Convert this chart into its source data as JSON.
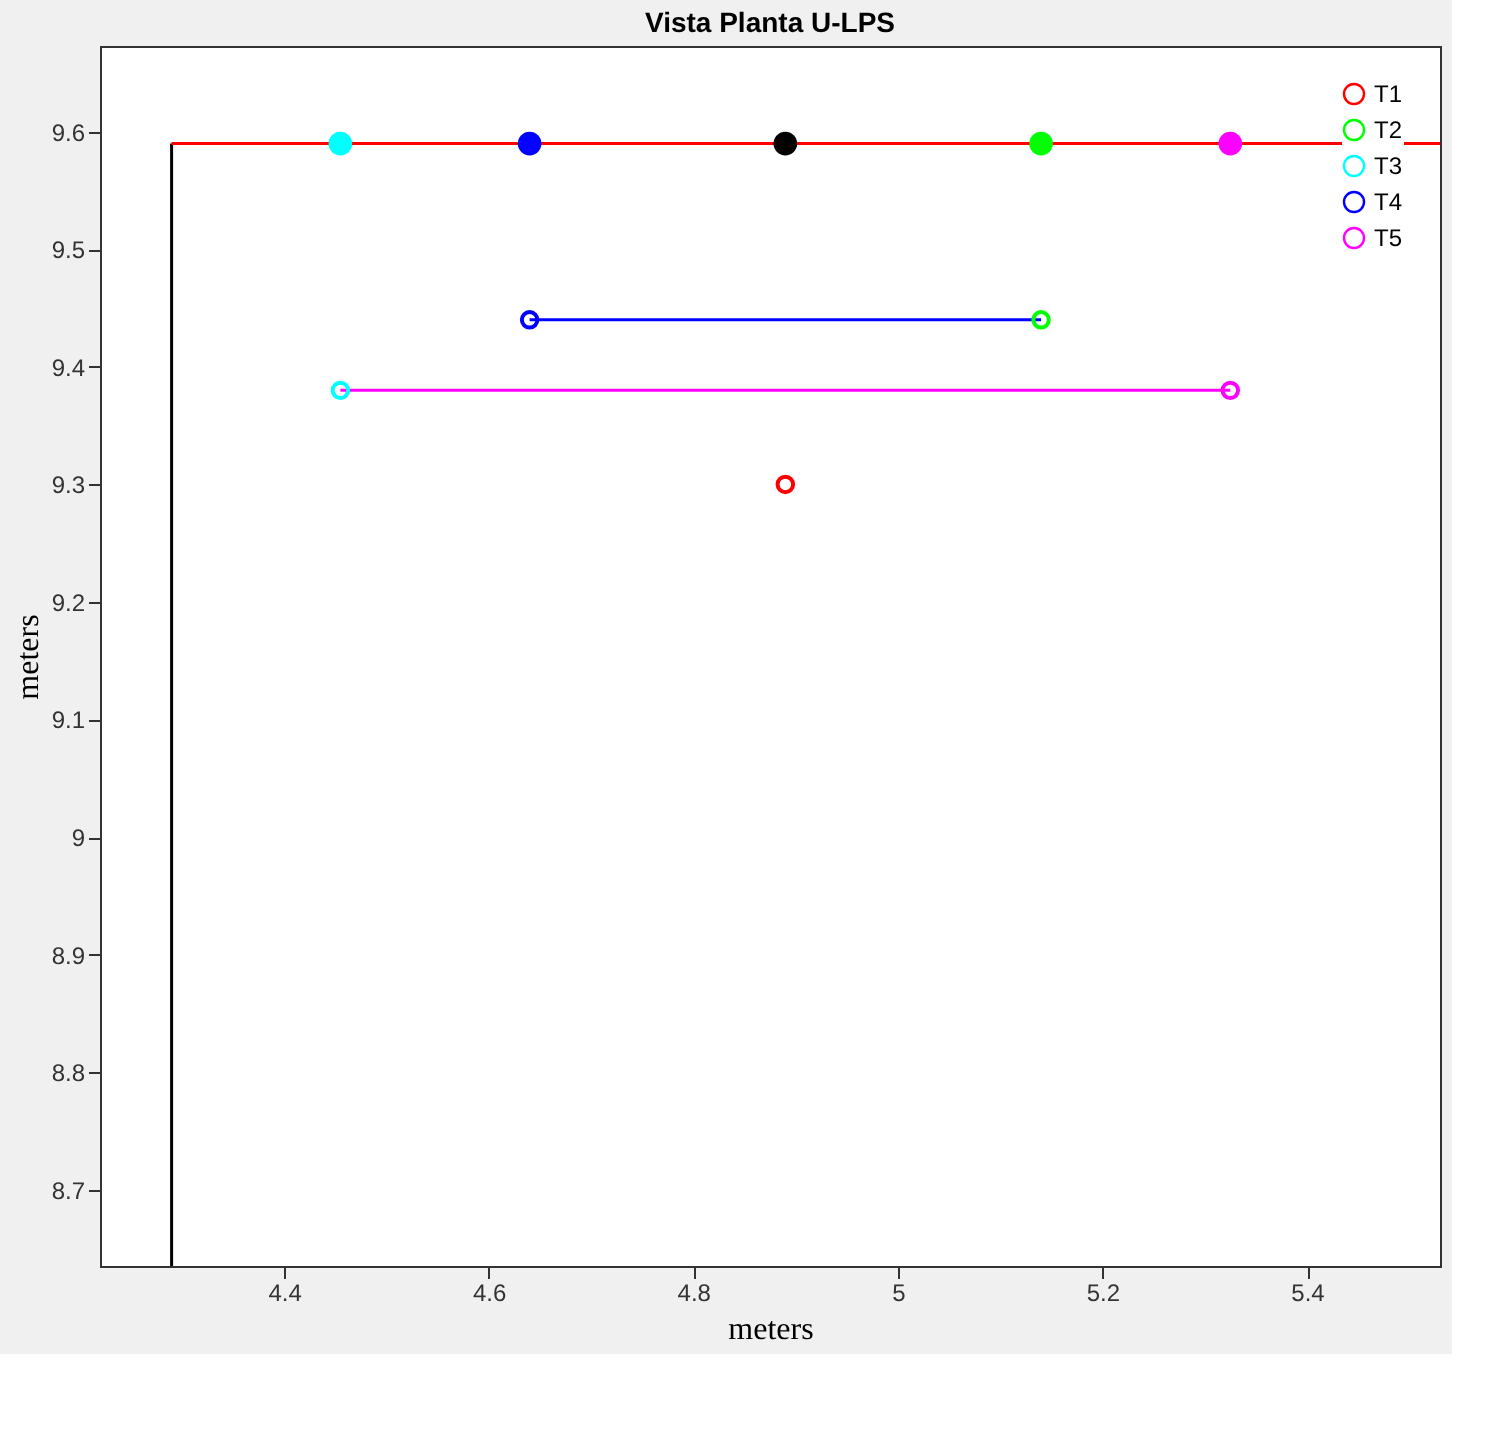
{
  "chart_data": {
    "type": "scatter",
    "title": "Vista Planta U-LPS",
    "xlabel": "meters",
    "ylabel": "meters",
    "xlim": [
      4.22,
      5.53
    ],
    "ylim": [
      8.635,
      9.673
    ],
    "xticks": [
      4.4,
      4.6,
      4.8,
      5,
      5.2,
      5.4
    ],
    "yticks": [
      8.7,
      8.8,
      8.9,
      9,
      9.1,
      9.2,
      9.3,
      9.4,
      9.5,
      9.6
    ],
    "grid": false,
    "legend": "top right",
    "marker": "circle",
    "series": [
      {
        "type": "line",
        "color": "#000000",
        "x": [
          4.29,
          4.29
        ],
        "values": [
          8.635,
          9.59
        ],
        "marker": "none"
      },
      {
        "type": "line",
        "color": "#ff0000",
        "x": [
          4.29,
          5.53
        ],
        "values": [
          9.59,
          9.59
        ],
        "marker": "none"
      },
      {
        "type": "line",
        "color": "#0000ff",
        "x": [
          4.64,
          5.14
        ],
        "values": [
          9.44,
          9.44
        ],
        "marker": "none"
      },
      {
        "type": "line",
        "color": "#ff00ff",
        "x": [
          4.455,
          5.325
        ],
        "values": [
          9.38,
          9.38
        ],
        "marker": "none"
      },
      {
        "x": [
          4.455,
          4.64,
          4.89,
          5.14,
          5.325
        ],
        "values": [
          9.59,
          9.59,
          9.59,
          9.59,
          9.59
        ],
        "colors": [
          "#00ffff",
          "#0000ff",
          "#000000",
          "#00ff00",
          "#ff00ff"
        ]
      },
      {
        "name": "T1",
        "color": "#ff0000",
        "x": [
          4.89
        ],
        "values": [
          9.3
        ]
      },
      {
        "name": "T2",
        "color": "#00ff00",
        "x": [
          5.14
        ],
        "values": [
          9.44
        ]
      },
      {
        "name": "T3",
        "color": "#00ffff",
        "x": [
          4.455
        ],
        "values": [
          9.38
        ]
      },
      {
        "name": "T4",
        "color": "#0000ff",
        "x": [
          4.64
        ],
        "values": [
          9.44
        ]
      },
      {
        "name": "T5",
        "color": "#ff00ff",
        "x": [
          5.325
        ],
        "values": [
          9.38
        ]
      }
    ]
  }
}
